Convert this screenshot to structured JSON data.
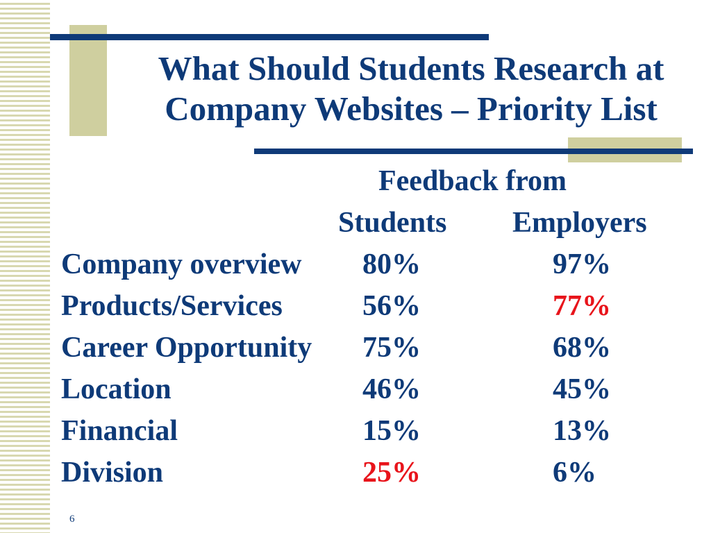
{
  "slide": {
    "title_line1": "What Should Students Research at",
    "title_line2": "Company Websites – Priority List",
    "feedback_heading": "Feedback from",
    "page_number": "6"
  },
  "table": {
    "columns": [
      "Students",
      "Employers"
    ],
    "rows": [
      {
        "label": "Company overview",
        "students": "80%",
        "employers": "97%"
      },
      {
        "label": "Products/Services",
        "students": "56%",
        "employers": "77%"
      },
      {
        "label": "Career Opportunity",
        "students": "75%",
        "employers": "68%"
      },
      {
        "label": "Location",
        "students": "46%",
        "employers": "45%"
      },
      {
        "label": "Financial",
        "students": "15%",
        "employers": "13%"
      },
      {
        "label": "Division",
        "students": "25%",
        "employers": "6%"
      }
    ]
  },
  "colors": {
    "text": "#0e3a78",
    "highlight": "#e8141b",
    "accent_block": "#cfcf9f"
  }
}
